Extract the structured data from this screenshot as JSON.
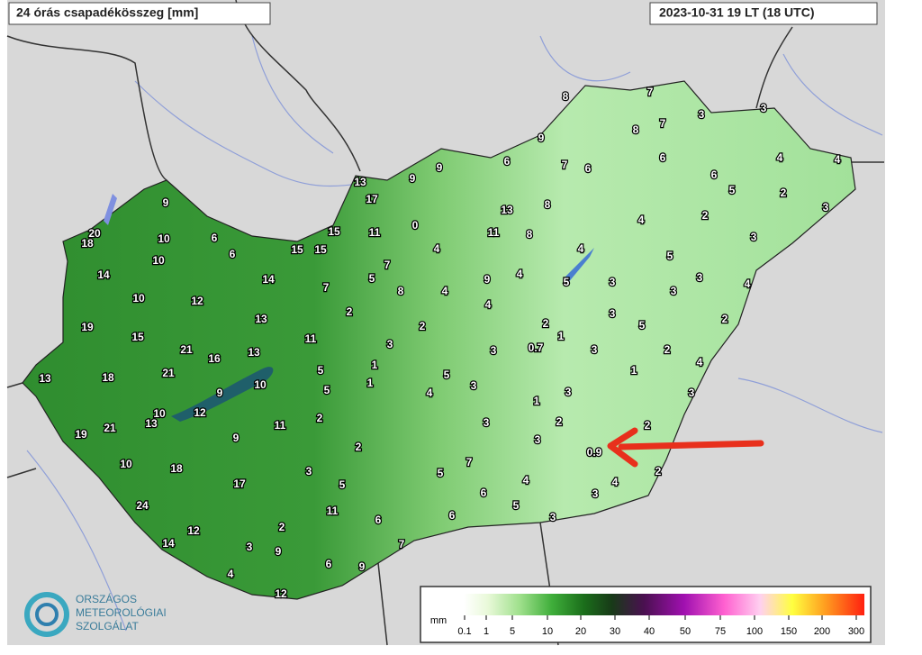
{
  "header": {
    "title": "24 órás csapadékösszeg [mm]",
    "time": "2023-10-31 19 LT (18 UTC)"
  },
  "stations": [
    8,
    7,
    3,
    3,
    8,
    7,
    9,
    6,
    7,
    6,
    6,
    4,
    4,
    9,
    9,
    13,
    6,
    5,
    2,
    17,
    8,
    13,
    3,
    9,
    0,
    4,
    2,
    20,
    18,
    10,
    6,
    15,
    11,
    11,
    8,
    3,
    4,
    4,
    10,
    6,
    15,
    15,
    5,
    7,
    14,
    14,
    7,
    5,
    9,
    4,
    3,
    5,
    3,
    8,
    4,
    4,
    3,
    10,
    12,
    4,
    2,
    3,
    13,
    2,
    2,
    19,
    2,
    5,
    1,
    15,
    11,
    0.7,
    3,
    3,
    3,
    2,
    21,
    13,
    16,
    1,
    5,
    1,
    4,
    13,
    18,
    21,
    10,
    1,
    5,
    3,
    9,
    5,
    4,
    3,
    3,
    1,
    10,
    12,
    2,
    13,
    11,
    3,
    2,
    2,
    19,
    21,
    9,
    3,
    2,
    0.9,
    10,
    18,
    7,
    3,
    5,
    2,
    17,
    5,
    4,
    4,
    6,
    3,
    24,
    11,
    5,
    6,
    6,
    3,
    2,
    12,
    7,
    14,
    3,
    9,
    6,
    9,
    4,
    12
  ],
  "legend": {
    "unit": "mm",
    "labels": [
      0.1,
      1,
      5,
      10,
      20,
      30,
      40,
      50,
      75,
      100,
      150,
      200,
      300
    ]
  },
  "logo": {
    "line1": "ORSZÁGOS",
    "line2": "METEOROLÓGIAI",
    "line3": "SZOLGÁLAT"
  }
}
